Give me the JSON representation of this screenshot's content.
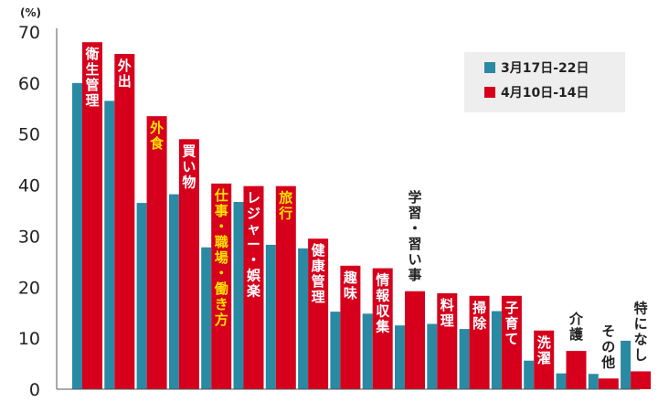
{
  "chart_data": {
    "type": "bar",
    "unit_label": "(%)",
    "ylim": [
      0,
      70
    ],
    "yticks": [
      0,
      10,
      20,
      30,
      40,
      50,
      60,
      70
    ],
    "grid": false,
    "legend_position": "top-right",
    "categories": [
      "衛生管理",
      "外出",
      "外食",
      "買い物",
      "仕事・職場・働き方",
      "レジャー・娯楽",
      "旅行",
      "健康管理",
      "趣味",
      "情報収集",
      "学習・習い事",
      "料理",
      "掃除",
      "子育て",
      "洗濯",
      "介護",
      "その他",
      "特になし"
    ],
    "highlighted_categories": [
      "外食",
      "仕事・職場・働き方",
      "旅行"
    ],
    "series": [
      {
        "name": "3月17日-22日",
        "color": "#2a8aa3",
        "values": [
          60,
          56.5,
          36.5,
          38.2,
          27.8,
          36.7,
          28.3,
          27.6,
          15.2,
          14.8,
          12.5,
          12.8,
          11.8,
          15.3,
          5.6,
          3.1,
          3.0,
          9.5
        ]
      },
      {
        "name": "4月10日-14日",
        "color": "#d6001c",
        "values": [
          68,
          65.7,
          53.5,
          49,
          40.3,
          39.8,
          39.8,
          29.5,
          24.2,
          23.7,
          19.2,
          18.8,
          18.3,
          18.3,
          11.5,
          7.5,
          2.1,
          3.5
        ]
      }
    ]
  }
}
